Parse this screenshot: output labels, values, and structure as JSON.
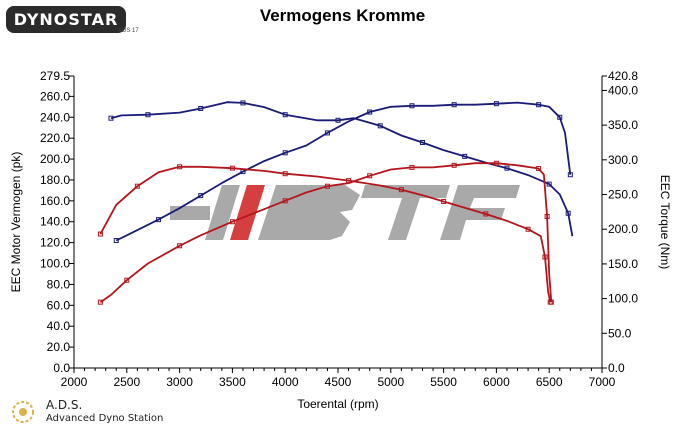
{
  "header": {
    "logo_text": "DYNOSTAR",
    "logo_sub": "ADS 17"
  },
  "chart_data": {
    "type": "line",
    "title": "Vermogens Kromme",
    "xlabel": "Toerental (rpm)",
    "ylabel_left": "EEC Motor Vermogen (pk)",
    "ylabel_right": "EEC Torque (Nm)",
    "xlim": [
      2000,
      7000
    ],
    "ylim_left": [
      0,
      279.5
    ],
    "ylim_right": [
      0,
      420.8
    ],
    "x_ticks": [
      "2000",
      "2500",
      "3000",
      "3500",
      "4000",
      "4500",
      "5000",
      "5500",
      "6000",
      "6500",
      "7000"
    ],
    "x_tick_values": [
      2000,
      2500,
      3000,
      3500,
      4000,
      4500,
      5000,
      5500,
      6000,
      6500,
      7000
    ],
    "y_left_ticks": [
      "279.5",
      "260.0",
      "240.0",
      "220.0",
      "200.0",
      "180.0",
      "160.0",
      "140.0",
      "120.0",
      "100.0",
      "80.0",
      "60.0",
      "40.0",
      "20.0",
      "0.0"
    ],
    "y_left_tick_values": [
      279.5,
      260,
      240,
      220,
      200,
      180,
      160,
      140,
      120,
      100,
      80,
      60,
      40,
      20,
      0
    ],
    "y_right_ticks": [
      "420.8",
      "400.0",
      "350.0",
      "300.0",
      "250.0",
      "200.0",
      "150.0",
      "100.0",
      "50.0",
      "0.0"
    ],
    "y_right_tick_values": [
      420.8,
      400,
      350,
      300,
      250,
      200,
      150,
      100,
      50,
      0
    ],
    "grid": false,
    "watermark": "IBTF",
    "series": [
      {
        "axis": "left",
        "color": "#1b1b78",
        "x": [
          2400,
          2600,
          2800,
          3000,
          3200,
          3400,
          3600,
          3800,
          4000,
          4200,
          4400,
          4600,
          4800,
          5000,
          5200,
          5400,
          5600,
          5800,
          6000,
          6200,
          6400,
          6500,
          6600,
          6650,
          6700
        ],
        "values": [
          122,
          132,
          142,
          153,
          165,
          177,
          188,
          198,
          206,
          213,
          225,
          236,
          245,
          250,
          251,
          251,
          252,
          252,
          253,
          254,
          252,
          250,
          240,
          225,
          185
        ]
      },
      {
        "axis": "right",
        "color": "#1b1b78",
        "x": [
          2350,
          2450,
          2700,
          3000,
          3200,
          3450,
          3600,
          3800,
          4000,
          4300,
          4500,
          4650,
          4900,
          5100,
          5300,
          5500,
          5700,
          5900,
          6100,
          6300,
          6500,
          6600,
          6680,
          6720
        ],
        "values": [
          360,
          364,
          365,
          368,
          374,
          383,
          382,
          376,
          365,
          357,
          357,
          360,
          349,
          335,
          325,
          314,
          305,
          296,
          288,
          278,
          265,
          250,
          223,
          190
        ]
      },
      {
        "axis": "left",
        "color": "#b3161d",
        "x": [
          2250,
          2350,
          2500,
          2700,
          3000,
          3200,
          3500,
          3800,
          4000,
          4200,
          4400,
          4600,
          4800,
          5000,
          5200,
          5400,
          5600,
          5800,
          6000,
          6200,
          6400,
          6450,
          6480,
          6500,
          6520
        ],
        "values": [
          63,
          70,
          84,
          100,
          117,
          127,
          140,
          152,
          160,
          168,
          174,
          177,
          184,
          190,
          192,
          192,
          194,
          196,
          196,
          194,
          191,
          185,
          145,
          90,
          63
        ]
      },
      {
        "axis": "right",
        "color": "#b3161d",
        "x": [
          2250,
          2400,
          2600,
          2800,
          3000,
          3200,
          3500,
          3800,
          4000,
          4300,
          4600,
          4900,
          5100,
          5300,
          5500,
          5700,
          5900,
          6100,
          6300,
          6420,
          6460,
          6490,
          6510
        ],
        "values": [
          193,
          235,
          262,
          282,
          290,
          290,
          288,
          284,
          280,
          276,
          270,
          263,
          257,
          249,
          240,
          231,
          222,
          212,
          200,
          190,
          160,
          110,
          95
        ]
      }
    ]
  },
  "footer": {
    "ads_title": "A.D.S.",
    "ads_subtitle": "Advanced Dyno Station"
  }
}
